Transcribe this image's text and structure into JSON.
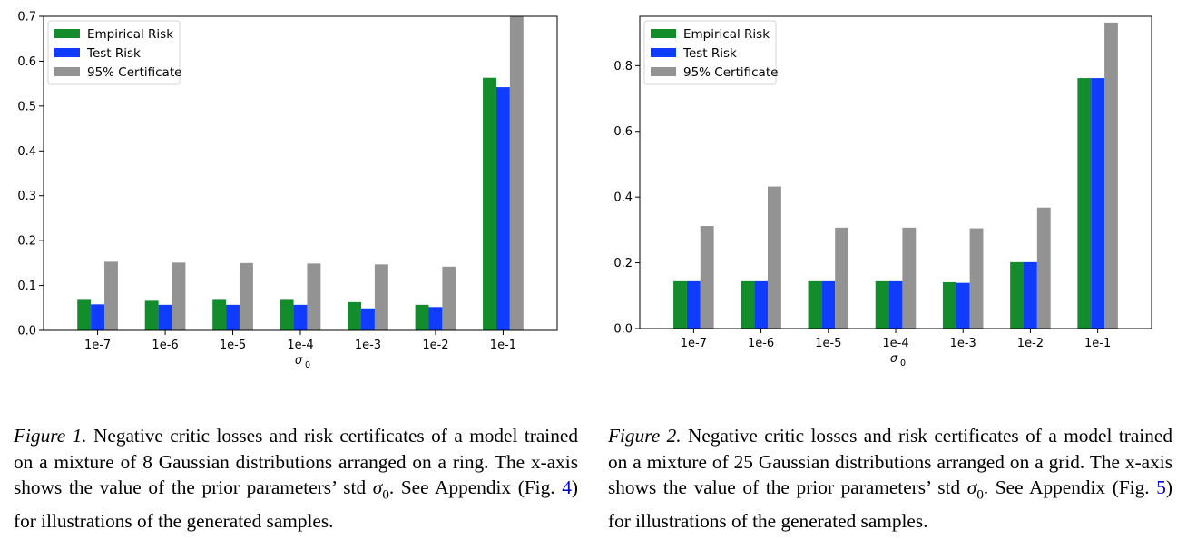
{
  "figures": [
    {
      "caption": {
        "label": "Figure 1.",
        "text_before_sigma": " Negative critic losses and risk certificates of a model trained on a mixture of 8 Gaussian distributions arranged on a ring. The x-axis shows the value of the prior parameters’ std ",
        "sigma": "σ",
        "sigma_sub": "0",
        "text_after_sigma": ". See Appendix (Fig. ",
        "ref": "4",
        "text_end": ") for illustrations of the generated samples."
      }
    },
    {
      "caption": {
        "label": "Figure 2.",
        "text_before_sigma": " Negative critic losses and risk certificates of a model trained on a mixture of 25 Gaussian distributions arranged on a grid. The x-axis shows the value of the prior parameters’ std ",
        "sigma": "σ",
        "sigma_sub": "0",
        "text_after_sigma": ". See Appendix (Fig. ",
        "ref": "5",
        "text_end": ") for illustrations of the generated samples."
      }
    }
  ],
  "chart_data": [
    {
      "type": "bar",
      "categories": [
        "1e-7",
        "1e-6",
        "1e-5",
        "1e-4",
        "1e-3",
        "1e-2",
        "1e-1"
      ],
      "series": [
        {
          "name": "Empirical Risk",
          "color": "#138d2b",
          "values": [
            0.068,
            0.066,
            0.068,
            0.068,
            0.063,
            0.057,
            0.563
          ]
        },
        {
          "name": "Test Risk",
          "color": "#0f3cff",
          "values": [
            0.058,
            0.057,
            0.057,
            0.057,
            0.049,
            0.052,
            0.542
          ]
        },
        {
          "name": "95% Certificate",
          "color": "#939393",
          "values": [
            0.153,
            0.151,
            0.15,
            0.149,
            0.147,
            0.142,
            0.699
          ]
        }
      ],
      "xlabel": "σ",
      "xlabel_sub": "0",
      "ylim": [
        0,
        0.7
      ],
      "yticks": [
        0.0,
        0.1,
        0.2,
        0.3,
        0.4,
        0.5,
        0.6,
        0.7
      ],
      "ytick_labels": [
        "0.0",
        "0.1",
        "0.2",
        "0.3",
        "0.4",
        "0.5",
        "0.6",
        "0.7"
      ],
      "legend_position": "top-left",
      "grid": false
    },
    {
      "type": "bar",
      "categories": [
        "1e-7",
        "1e-6",
        "1e-5",
        "1e-4",
        "1e-3",
        "1e-2",
        "1e-1"
      ],
      "series": [
        {
          "name": "Empirical Risk",
          "color": "#138d2b",
          "values": [
            0.144,
            0.144,
            0.144,
            0.144,
            0.141,
            0.202,
            0.762
          ]
        },
        {
          "name": "Test Risk",
          "color": "#0f3cff",
          "values": [
            0.144,
            0.144,
            0.144,
            0.144,
            0.139,
            0.202,
            0.762
          ]
        },
        {
          "name": "95% Certificate",
          "color": "#939393",
          "values": [
            0.312,
            0.432,
            0.307,
            0.307,
            0.305,
            0.368,
            0.931
          ]
        }
      ],
      "xlabel": "σ",
      "xlabel_sub": "0",
      "ylim": [
        0,
        0.95
      ],
      "yticks": [
        0.0,
        0.2,
        0.4,
        0.6,
        0.8
      ],
      "ytick_labels": [
        "0.0",
        "0.2",
        "0.4",
        "0.6",
        "0.8"
      ],
      "legend_position": "top-left",
      "grid": false
    }
  ]
}
